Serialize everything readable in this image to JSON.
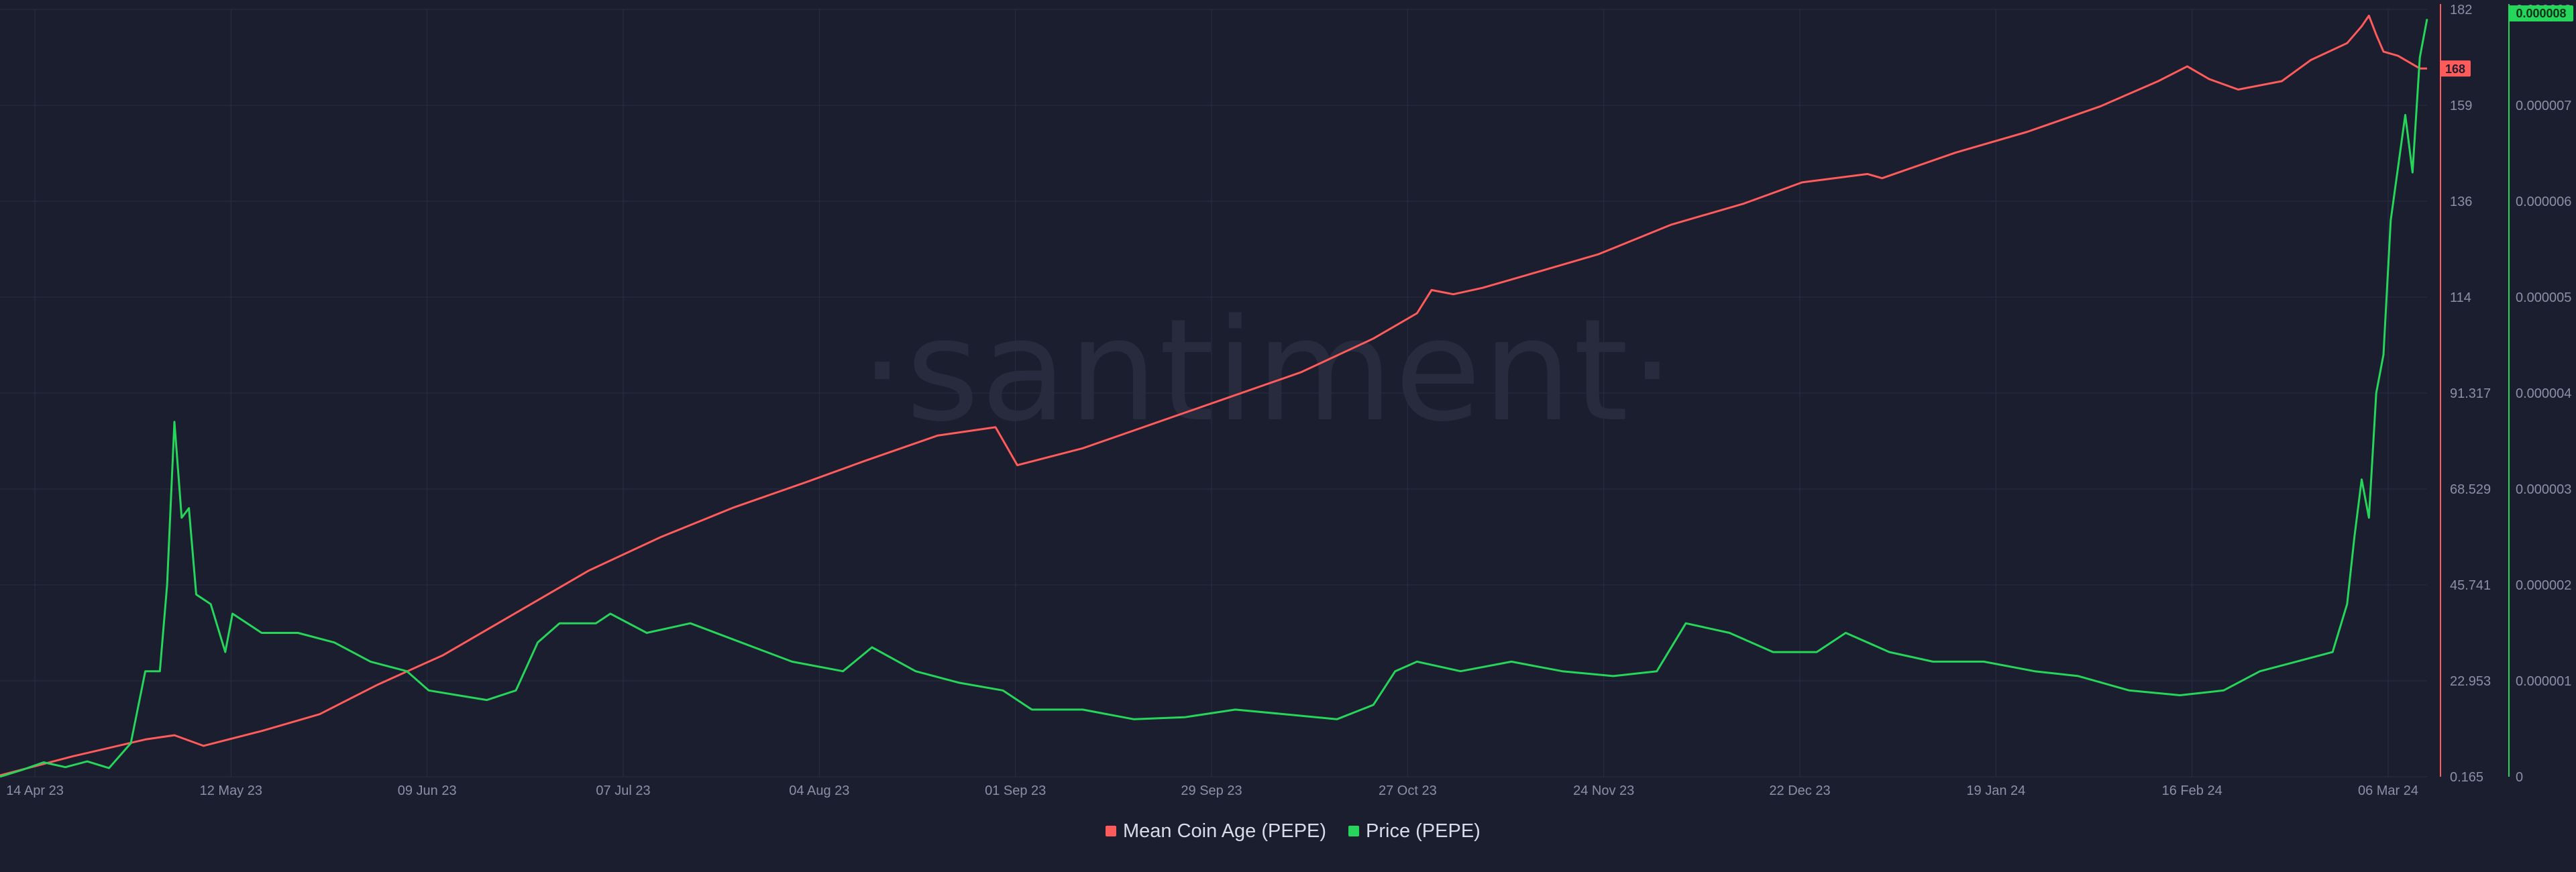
{
  "watermark": "·santiment·",
  "colors": {
    "background": "#1b1e2e",
    "mean_coin_age": "#ff5b5b",
    "price": "#26d65a",
    "grid": "#2a2e42",
    "tick_text": "#8b90a8"
  },
  "chart_data": {
    "type": "line",
    "x_ticks": [
      "14 Apr 23",
      "12 May 23",
      "09 Jun 23",
      "07 Jul 23",
      "04 Aug 23",
      "01 Sep 23",
      "29 Sep 23",
      "27 Oct 23",
      "24 Nov 23",
      "22 Dec 23",
      "19 Jan 24",
      "16 Feb 24",
      "06 Mar 24"
    ],
    "x_start": "2023-04-14",
    "x_end": "2024-03-06",
    "left_axis": {
      "ticks": [
        "182",
        "159",
        "136",
        "114",
        "91.317",
        "68.529",
        "45.741",
        "22.953",
        "0.165"
      ],
      "range": [
        0.165,
        182
      ],
      "current_label": "168"
    },
    "right_axis": {
      "ticks": [
        "0.000008",
        "0.000007",
        "0.000006",
        "0.000005",
        "0.000004",
        "0.000003",
        "0.000002",
        "0.000001",
        "0"
      ],
      "range": [
        0,
        8e-06
      ],
      "current_label": "0.000008"
    },
    "legend_position": "bottom-center",
    "grid": true,
    "series": [
      {
        "name": "Mean Coin Age (PEPE)",
        "axis": "left",
        "color": "#ff5b5b",
        "points": [
          [
            "2023-04-14",
            0.5
          ],
          [
            "2023-04-24",
            5
          ],
          [
            "2023-05-04",
            9
          ],
          [
            "2023-05-08",
            10
          ],
          [
            "2023-05-12",
            7.5
          ],
          [
            "2023-05-20",
            11
          ],
          [
            "2023-05-28",
            15
          ],
          [
            "2023-06-05",
            22
          ],
          [
            "2023-06-14",
            29
          ],
          [
            "2023-06-24",
            39
          ],
          [
            "2023-07-04",
            49
          ],
          [
            "2023-07-14",
            57
          ],
          [
            "2023-07-24",
            64
          ],
          [
            "2023-08-03",
            70
          ],
          [
            "2023-08-11",
            75
          ],
          [
            "2023-08-21",
            81
          ],
          [
            "2023-08-29",
            83
          ],
          [
            "2023-08-31",
            77
          ],
          [
            "2023-09-01",
            74
          ],
          [
            "2023-09-10",
            78
          ],
          [
            "2023-09-20",
            84
          ],
          [
            "2023-09-30",
            90
          ],
          [
            "2023-10-10",
            96
          ],
          [
            "2023-10-20",
            104
          ],
          [
            "2023-10-26",
            110
          ],
          [
            "2023-10-28",
            115.5
          ],
          [
            "2023-10-31",
            114.5
          ],
          [
            "2023-11-04",
            116
          ],
          [
            "2023-11-10",
            119
          ],
          [
            "2023-11-20",
            124
          ],
          [
            "2023-11-30",
            131
          ],
          [
            "2023-12-10",
            136
          ],
          [
            "2023-12-18",
            141
          ],
          [
            "2023-12-27",
            143
          ],
          [
            "2023-12-29",
            142
          ],
          [
            "2024-01-08",
            148
          ],
          [
            "2024-01-18",
            153
          ],
          [
            "2024-01-28",
            159
          ],
          [
            "2024-02-05",
            165
          ],
          [
            "2024-02-09",
            168.5
          ],
          [
            "2024-02-12",
            165.5
          ],
          [
            "2024-02-16",
            163
          ],
          [
            "2024-02-22",
            165
          ],
          [
            "2024-02-26",
            170
          ],
          [
            "2024-03-02",
            174
          ],
          [
            "2024-03-04",
            178
          ],
          [
            "2024-03-05",
            180.5
          ],
          [
            "2024-03-06",
            176
          ],
          [
            "2024-03-07",
            172
          ],
          [
            "2024-03-09",
            171
          ],
          [
            "2024-03-12",
            168
          ],
          [
            "2024-03-13",
            168
          ]
        ]
      },
      {
        "name": "Price (PEPE)",
        "axis": "right",
        "color": "#26d65a",
        "points": [
          [
            "2023-04-14",
            0
          ],
          [
            "2023-04-17",
            7e-08
          ],
          [
            "2023-04-20",
            1.5e-07
          ],
          [
            "2023-04-23",
            1e-07
          ],
          [
            "2023-04-26",
            1.6e-07
          ],
          [
            "2023-04-29",
            9e-08
          ],
          [
            "2023-05-02",
            3.5e-07
          ],
          [
            "2023-05-04",
            1.1e-06
          ],
          [
            "2023-05-06",
            1.1e-06
          ],
          [
            "2023-05-07",
            2e-06
          ],
          [
            "2023-05-08",
            3.7e-06
          ],
          [
            "2023-05-09",
            2.7e-06
          ],
          [
            "2023-05-10",
            2.8e-06
          ],
          [
            "2023-05-11",
            1.9e-06
          ],
          [
            "2023-05-13",
            1.8e-06
          ],
          [
            "2023-05-15",
            1.3e-06
          ],
          [
            "2023-05-16",
            1.7e-06
          ],
          [
            "2023-05-20",
            1.5e-06
          ],
          [
            "2023-05-25",
            1.5e-06
          ],
          [
            "2023-05-30",
            1.4e-06
          ],
          [
            "2023-06-04",
            1.2e-06
          ],
          [
            "2023-06-09",
            1.1e-06
          ],
          [
            "2023-06-12",
            9e-07
          ],
          [
            "2023-06-16",
            8.5e-07
          ],
          [
            "2023-06-20",
            8e-07
          ],
          [
            "2023-06-24",
            9e-07
          ],
          [
            "2023-06-27",
            1.4e-06
          ],
          [
            "2023-06-30",
            1.6e-06
          ],
          [
            "2023-07-05",
            1.6e-06
          ],
          [
            "2023-07-07",
            1.7e-06
          ],
          [
            "2023-07-12",
            1.5e-06
          ],
          [
            "2023-07-18",
            1.6e-06
          ],
          [
            "2023-07-25",
            1.4e-06
          ],
          [
            "2023-08-01",
            1.2e-06
          ],
          [
            "2023-08-08",
            1.1e-06
          ],
          [
            "2023-08-12",
            1.35e-06
          ],
          [
            "2023-08-18",
            1.1e-06
          ],
          [
            "2023-08-24",
            9.8e-07
          ],
          [
            "2023-08-30",
            9e-07
          ],
          [
            "2023-09-03",
            7e-07
          ],
          [
            "2023-09-10",
            7e-07
          ],
          [
            "2023-09-17",
            6e-07
          ],
          [
            "2023-09-24",
            6.2e-07
          ],
          [
            "2023-10-01",
            7e-07
          ],
          [
            "2023-10-08",
            6.5e-07
          ],
          [
            "2023-10-15",
            6e-07
          ],
          [
            "2023-10-20",
            7.5e-07
          ],
          [
            "2023-10-23",
            1.1e-06
          ],
          [
            "2023-10-26",
            1.2e-06
          ],
          [
            "2023-11-01",
            1.1e-06
          ],
          [
            "2023-11-08",
            1.2e-06
          ],
          [
            "2023-11-15",
            1.1e-06
          ],
          [
            "2023-11-22",
            1.05e-06
          ],
          [
            "2023-11-28",
            1.1e-06
          ],
          [
            "2023-12-02",
            1.6e-06
          ],
          [
            "2023-12-08",
            1.5e-06
          ],
          [
            "2023-12-14",
            1.3e-06
          ],
          [
            "2023-12-20",
            1.3e-06
          ],
          [
            "2023-12-24",
            1.5e-06
          ],
          [
            "2023-12-30",
            1.3e-06
          ],
          [
            "2024-01-05",
            1.2e-06
          ],
          [
            "2024-01-12",
            1.2e-06
          ],
          [
            "2024-01-19",
            1.1e-06
          ],
          [
            "2024-01-25",
            1.05e-06
          ],
          [
            "2024-02-01",
            9e-07
          ],
          [
            "2024-02-08",
            8.5e-07
          ],
          [
            "2024-02-14",
            9e-07
          ],
          [
            "2024-02-19",
            1.1e-06
          ],
          [
            "2024-02-24",
            1.2e-06
          ],
          [
            "2024-02-29",
            1.3e-06
          ],
          [
            "2024-03-02",
            1.8e-06
          ],
          [
            "2024-03-03",
            2.5e-06
          ],
          [
            "2024-03-04",
            3.1e-06
          ],
          [
            "2024-03-05",
            2.7e-06
          ],
          [
            "2024-03-06",
            4e-06
          ],
          [
            "2024-03-07",
            4.4e-06
          ],
          [
            "2024-03-08",
            5.8e-06
          ],
          [
            "2024-03-10",
            6.9e-06
          ],
          [
            "2024-03-11",
            6.3e-06
          ],
          [
            "2024-03-12",
            7.5e-06
          ],
          [
            "2024-03-13",
            7.9e-06
          ]
        ]
      }
    ]
  }
}
